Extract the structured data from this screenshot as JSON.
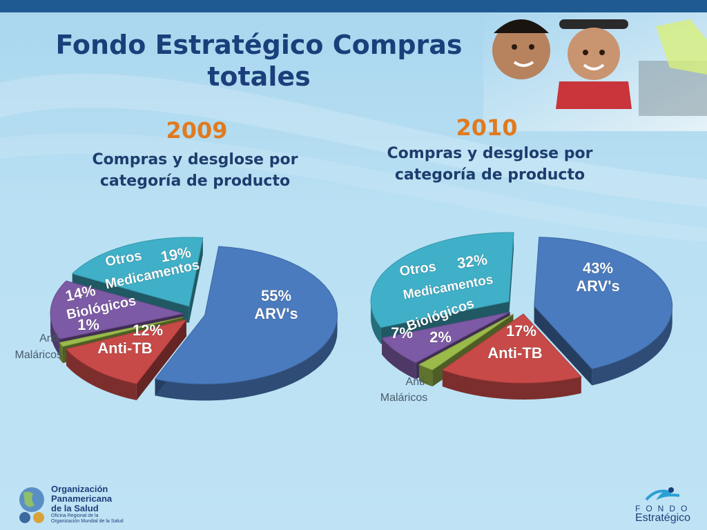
{
  "header": {
    "title_line1": "Fondo Estratégico Compras",
    "title_line2": "totales"
  },
  "colors": {
    "arvs": "#4a7bbf",
    "anti_tb": "#c84a48",
    "anti_malaricos": "#9aba4a",
    "biologicos": "#7d5aa5",
    "otros": "#3fb0c8",
    "title": "#1b3f7a",
    "year": "#e07a1f"
  },
  "chart_data": [
    {
      "type": "pie",
      "title": "2009",
      "subtitle": "Compras y desglose por categoría de producto",
      "slices": [
        {
          "name": "ARV's",
          "pct_label": "55%",
          "value": 55
        },
        {
          "name": "Anti-TB",
          "pct_label": "12%",
          "value": 12
        },
        {
          "name": "Anti-Maláricos",
          "pct_label": "1%",
          "value": 1
        },
        {
          "name": "Biológicos",
          "pct_label": "14%",
          "value": 14
        },
        {
          "name": "Otros Medicamentos",
          "pct_label": "19%",
          "value": 19
        }
      ]
    },
    {
      "type": "pie",
      "title": "2010",
      "subtitle": "Compras y desglose por categoría de producto",
      "slices": [
        {
          "name": "ARV's",
          "pct_label": "43%",
          "value": 43
        },
        {
          "name": "Anti-TB",
          "pct_label": "17%",
          "value": 17
        },
        {
          "name": "Anti-Maláricos",
          "pct_label": "2%",
          "value": 2
        },
        {
          "name": "Biológicos",
          "pct_label": "7%",
          "value": 7
        },
        {
          "name": "Otros Medicamentos",
          "pct_label": "32%",
          "value": 32
        }
      ]
    }
  ],
  "labels": {
    "arvs": "ARV's",
    "anti_tb": "Anti-TB",
    "anti_mal_1": "Anti-",
    "anti_mal_2": "Maláricos",
    "biologicos": "Biológicos",
    "otros_1": "Otros",
    "otros_2": "Medicamentos"
  },
  "footer": {
    "ops_line1": "Organización",
    "ops_line2": "Panamericana",
    "ops_line3": "de la Salud",
    "ops_sub1": "Oficina Regional de la",
    "ops_sub2": "Organización Mundial de la Salud",
    "fe_top": "FONDO",
    "fe_bottom": "Estratégico"
  }
}
